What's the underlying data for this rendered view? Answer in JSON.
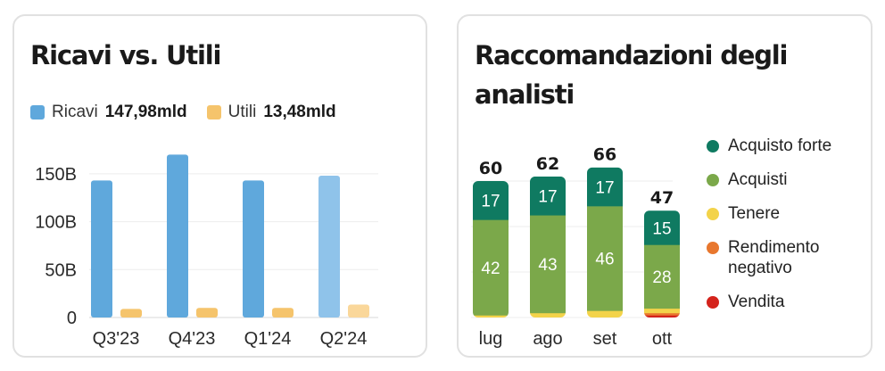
{
  "left_card": {
    "title": "Ricavi vs. Utili",
    "legend": [
      {
        "name": "Ricavi",
        "value": "147,98mld",
        "color": "#5fa8dc"
      },
      {
        "name": "Utili",
        "value": "13,48mld",
        "color": "#f5c46c"
      }
    ]
  },
  "right_card": {
    "title": "Raccomandazioni degli analisti",
    "legend": [
      {
        "name": "Acquisto forte",
        "color": "#0f7a61"
      },
      {
        "name": "Acquisti",
        "color": "#7ba84a"
      },
      {
        "name": "Tenere",
        "color": "#f3d34a"
      },
      {
        "name": "Rendimento negativo",
        "color": "#e8772e"
      },
      {
        "name": "Vendita",
        "color": "#d4231c"
      }
    ]
  },
  "chart_data": [
    {
      "type": "bar",
      "title": "Ricavi vs. Utili",
      "categories": [
        "Q3'23",
        "Q4'23",
        "Q1'24",
        "Q2'24"
      ],
      "series": [
        {
          "name": "Ricavi",
          "values": [
            143,
            170,
            143,
            148
          ],
          "color": "#5fa8dc",
          "highlight_color": "#8fc3ea"
        },
        {
          "name": "Utili",
          "values": [
            9,
            10,
            10,
            13.48
          ],
          "color": "#f5c46c",
          "highlight_color": "#fad79a"
        }
      ],
      "yticks": [
        "0",
        "50B",
        "100B",
        "150B"
      ],
      "ytick_values": [
        0,
        50,
        100,
        150
      ],
      "ylim": [
        0,
        175
      ],
      "grid": true,
      "highlight_last": true
    },
    {
      "type": "bar",
      "stacked": true,
      "title": "Raccomandazioni degli analisti",
      "categories": [
        "lug",
        "ago",
        "set",
        "ott"
      ],
      "totals": [
        60,
        62,
        66,
        47
      ],
      "series": [
        {
          "name": "Vendita",
          "values": [
            0,
            0,
            0,
            1
          ],
          "color": "#d4231c"
        },
        {
          "name": "Rendimento negativo",
          "values": [
            0,
            0,
            0,
            1
          ],
          "color": "#e8772e"
        },
        {
          "name": "Tenere",
          "values": [
            1,
            2,
            3,
            2
          ],
          "color": "#f3d34a"
        },
        {
          "name": "Acquisti",
          "values": [
            42,
            43,
            46,
            28
          ],
          "color": "#7ba84a"
        },
        {
          "name": "Acquisto forte",
          "values": [
            17,
            17,
            17,
            15
          ],
          "color": "#0f7a61"
        }
      ],
      "ylim": [
        0,
        70
      ],
      "grid": true
    }
  ]
}
